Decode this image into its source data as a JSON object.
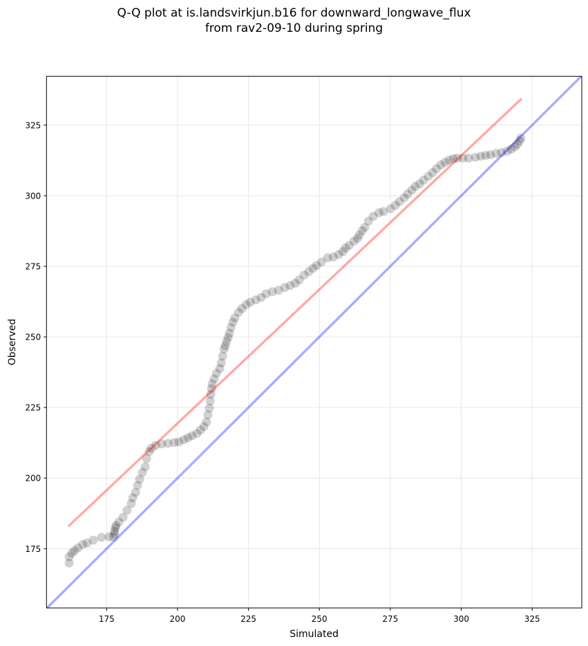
{
  "chart_data": {
    "type": "scatter",
    "title": [
      "Q-Q plot at is.landsvirkjun.b16 for downward_longwave_flux",
      "from rav2-09-10 during spring"
    ],
    "xlabel": "Simulated",
    "ylabel": "Observed",
    "xlim": [
      153.8,
      342.5
    ],
    "ylim": [
      154.0,
      342.3
    ],
    "xticks": [
      175,
      200,
      225,
      250,
      275,
      300,
      325
    ],
    "yticks": [
      175,
      200,
      225,
      250,
      275,
      300,
      325
    ],
    "xtick_labels": [
      "175",
      "200",
      "225",
      "250",
      "275",
      "300",
      "325"
    ],
    "ytick_labels": [
      "175",
      "200",
      "225",
      "250",
      "275",
      "300",
      "325"
    ],
    "grid": true,
    "colors": {
      "points": "#000000",
      "fit_line": "#ff0000",
      "identity_line": "#0000ff",
      "grid": "#e6e6e6"
    },
    "series": [
      {
        "name": "quantiles",
        "kind": "scatter",
        "x": [
          161.8,
          161.8,
          162.7,
          163.7,
          164.9,
          166.6,
          168.1,
          170.3,
          173.2,
          175.9,
          177.4,
          177.8,
          177.8,
          178.1,
          178.3,
          179.3,
          180.8,
          182.2,
          183.7,
          184.2,
          185.2,
          185.9,
          186.6,
          187.6,
          188.6,
          189.1,
          190.0,
          190.8,
          192.3,
          194.4,
          196.6,
          198.8,
          200.5,
          202.2,
          203.7,
          205.1,
          206.8,
          208.1,
          209.3,
          210.2,
          210.7,
          211.2,
          211.5,
          211.7,
          212.0,
          212.2,
          212.9,
          213.7,
          214.9,
          215.4,
          215.9,
          216.4,
          216.8,
          217.3,
          217.8,
          218.3,
          218.8,
          219.5,
          220.2,
          221.5,
          222.7,
          224.2,
          225.6,
          227.6,
          229.5,
          231.2,
          233.4,
          235.6,
          237.8,
          239.7,
          241.5,
          242.9,
          244.6,
          246.3,
          247.8,
          249.0,
          250.7,
          252.9,
          254.9,
          256.8,
          258.3,
          259.2,
          260.5,
          262.2,
          263.4,
          264.1,
          265.1,
          266.0,
          267.3,
          269.0,
          271.0,
          272.6,
          275.1,
          276.8,
          278.2,
          279.9,
          281.1,
          282.6,
          283.8,
          285.3,
          286.7,
          288.4,
          289.9,
          291.3,
          292.8,
          294.3,
          295.7,
          297.2,
          298.6,
          300.6,
          302.6,
          305.0,
          306.9,
          308.6,
          310.3,
          312.3,
          314.2,
          316.2,
          317.6,
          318.9,
          319.8,
          320.6,
          321.0
        ],
        "y": [
          169.9,
          172.1,
          173.4,
          174.3,
          175.3,
          176.5,
          177.0,
          178.0,
          179.0,
          179.2,
          179.2,
          180.2,
          181.2,
          182.4,
          183.2,
          184.4,
          186.1,
          188.6,
          191.0,
          193.0,
          194.9,
          197.4,
          199.6,
          202.0,
          204.0,
          206.9,
          209.4,
          210.6,
          211.6,
          212.1,
          212.3,
          212.6,
          212.8,
          213.6,
          214.3,
          215.0,
          215.8,
          217.0,
          218.2,
          219.9,
          222.4,
          224.8,
          227.3,
          229.7,
          231.7,
          233.4,
          235.1,
          237.1,
          238.8,
          240.8,
          243.2,
          245.7,
          246.9,
          248.4,
          249.8,
          251.3,
          253.3,
          255.2,
          256.7,
          258.7,
          260.1,
          261.4,
          262.3,
          263.1,
          264.0,
          265.3,
          266.0,
          266.5,
          267.5,
          268.2,
          269.0,
          270.2,
          271.9,
          273.1,
          274.3,
          275.3,
          276.5,
          278.0,
          278.3,
          279.2,
          280.2,
          281.5,
          282.4,
          283.9,
          284.9,
          286.1,
          287.6,
          288.8,
          291.0,
          292.7,
          294.0,
          294.4,
          295.4,
          296.6,
          297.9,
          299.3,
          300.6,
          302.0,
          303.3,
          304.2,
          305.5,
          306.9,
          308.2,
          309.6,
          310.9,
          311.8,
          312.6,
          313.1,
          313.3,
          313.3,
          313.3,
          313.6,
          314.0,
          314.3,
          314.5,
          315.0,
          315.3,
          315.8,
          316.5,
          317.3,
          318.2,
          319.4,
          320.4
        ]
      },
      {
        "name": "fit_line",
        "kind": "line",
        "x": [
          161.5,
          321.3
        ],
        "y": [
          182.9,
          334.4
        ]
      },
      {
        "name": "identity_line",
        "kind": "line",
        "x": [
          153.8,
          342.5
        ],
        "y": [
          153.8,
          342.5
        ]
      }
    ]
  }
}
